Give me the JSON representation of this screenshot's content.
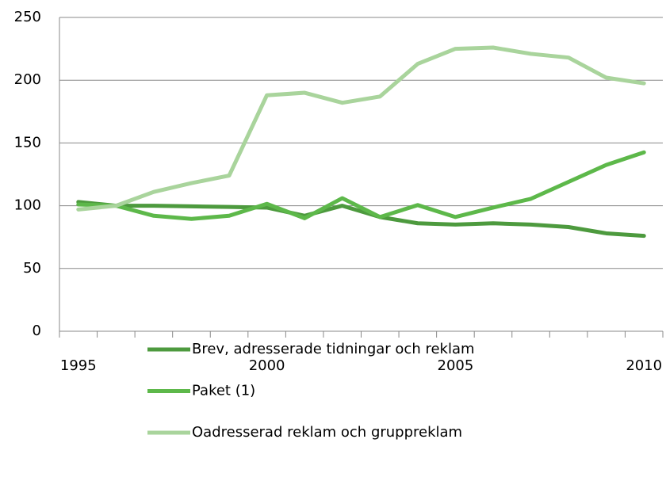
{
  "chart_data": {
    "type": "line",
    "categories": [
      "1995",
      null,
      null,
      null,
      null,
      "2000",
      null,
      null,
      null,
      null,
      "2005",
      null,
      null,
      null,
      null,
      "2010"
    ],
    "series": [
      {
        "name": "Brev, adresserade tidningar och reklam",
        "color": "#4d9a3e",
        "values": [
          103,
          100,
          100,
          99.5,
          99,
          98.5,
          92,
          100,
          91,
          86,
          85,
          86,
          85,
          83,
          78,
          76
        ]
      },
      {
        "name": "Paket (1)",
        "color": "#5db84a",
        "values": [
          101,
          100,
          92,
          89.5,
          92,
          101.5,
          90,
          106,
          91,
          100.5,
          91,
          98.5,
          105.5,
          119,
          132.5,
          142.5
        ]
      },
      {
        "name": "Oadresserad reklam och gruppreklam",
        "color": "#a9d49c",
        "values": [
          97,
          100,
          111,
          118,
          124,
          188,
          190,
          182,
          187,
          213,
          225,
          226,
          221,
          218,
          202,
          197.5
        ]
      }
    ],
    "ylim": [
      0,
      250
    ],
    "yticks": [
      0,
      50,
      100,
      150,
      200,
      250
    ],
    "grid": true,
    "legend": "bottom"
  }
}
